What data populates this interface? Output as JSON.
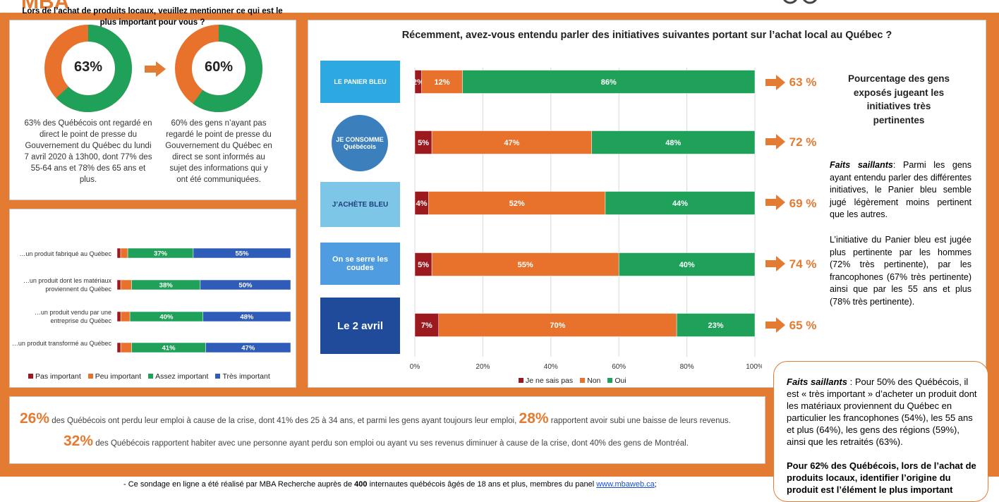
{
  "header": {
    "brand": "MBA"
  },
  "donut1": {
    "value": "63%",
    "pct": 0.63,
    "text": "63% des Québécois ont regardé en direct le point de presse du Gouvernement du Québec du lundi 7 avril 2020 à 13h00, dont 77% des 55-64 ans et 78% des 65 ans et plus."
  },
  "donut2": {
    "value": "60%",
    "pct": 0.6,
    "text": "60% des gens n’ayant pas regardé le point de presse du Gouvernement du Québec en direct se sont informés au sujet des informations qui y ont été communiquées."
  },
  "local": {
    "title": "Lors de l’achat de produits locaux, veuillez mentionner ce qui est le plus important pour vous ?",
    "legend": [
      "Pas important",
      "Peu important",
      "Assez important",
      "Très important"
    ]
  },
  "main": {
    "title": "Récemment, avez-vous entendu parler des initiatives suivantes portant sur l’achat local au Québec ?",
    "legend": [
      "Je ne sais pas",
      "Non",
      "Oui"
    ],
    "ticks": [
      "0%",
      "20%",
      "40%",
      "60%",
      "80%",
      "100%"
    ],
    "logos": [
      "LE PANIER BLEU",
      "JE CONSOMME Québécois",
      "J’ACHÈTE BLEU",
      "On se serre les coudes",
      "Le 2 avril"
    ],
    "pertinence": [
      "63 %",
      "72 %",
      "69 %",
      "74 %",
      "65 %"
    ]
  },
  "side": {
    "heading": "Pourcentage des gens exposés jugeant les initiatives très pertinentes",
    "faits_label": "Faits saillants",
    "faits_text": ": Parmi les gens ayant entendu parler des différentes initiatives, le Panier bleu semble jugé légèrement moins pertinent que les autres.",
    "para2": "L’initiative du Panier bleu est jugée plus pertinente par les hommes (72% très pertinente), par les francophones (67% très pertinente) ainsi que par les 55 ans et plus (78% très pertinente)."
  },
  "callout": {
    "faits_label": "Faits saillants",
    "text": " : Pour 50% des Québécois, il est « très important » d’acheter un produit dont les matériaux proviennent du Québec en particulier les francophones (54%), les 55 ans et plus (64%), les gens des régions (59%), ainsi que les retraités (63%).",
    "bold": "Pour 62% des Québécois, lors de l’achat de produits locaux, identifier l’origine du produit est l’élément le plus important"
  },
  "bottom": {
    "s1_num": "26%",
    "s1_text": " des Québécois ont perdu leur emploi à cause de la crise, dont 41% des 25 à 34 ans, et parmi les gens ayant toujours leur emploi, ",
    "s2_num": "28%",
    "s2_text": " rapportent avoir subi une baisse de leurs revenus.",
    "s3_num": "32%",
    "s3_text": " des Québécois rapportent habiter avec une personne ayant perdu son emploi ou ayant vu ses revenus diminuer à cause de la crise, dont 40% des gens de Montréal."
  },
  "footer": {
    "text1": "-     Ce sondage en ligne a été réalisé par MBA Recherche auprès de ",
    "n": "400",
    "text2": " internautes québécois âgés de 18 ans et plus, membres du panel ",
    "link": "www.mbaweb.ca",
    "end": ";"
  },
  "colors": {
    "dark_red": "#9c1a1f",
    "orange": "#e8722c",
    "green": "#1fa15a",
    "blue": "#2f5cb8",
    "brand": "#e37b33"
  },
  "chart_data": [
    {
      "type": "bar",
      "title": "Récemment, avez-vous entendu parler des initiatives suivantes portant sur l’achat local au Québec ?",
      "orientation": "horizontal-stacked",
      "categories": [
        "LE PANIER BLEU",
        "JE CONSOMME Québécois",
        "J’ACHÈTE BLEU",
        "On se serre les coudes",
        "Le 2 avril"
      ],
      "series": [
        {
          "name": "Je ne sais pas",
          "values": [
            2,
            5,
            4,
            5,
            7
          ],
          "labels": [
            "2%",
            "5%",
            "4%",
            "5%",
            "7%"
          ]
        },
        {
          "name": "Non",
          "values": [
            12,
            47,
            52,
            55,
            70
          ],
          "labels": [
            "12%",
            "47%",
            "52%",
            "55%",
            "70%"
          ]
        },
        {
          "name": "Oui",
          "values": [
            86,
            48,
            44,
            40,
            23
          ],
          "labels": [
            "86%",
            "48%",
            "44%",
            "40%",
            "23%"
          ]
        }
      ],
      "xlim": [
        0,
        100
      ],
      "legend": "bottom"
    },
    {
      "type": "bar",
      "title": "Lors de l’achat de produits locaux, veuillez mentionner ce qui est le plus important pour vous ?",
      "orientation": "horizontal-stacked",
      "categories": [
        "…un produit fabriqué au Québec",
        "…un produit dont les matériaux proviennent du Québec",
        "…un produit vendu par une entreprise du Québec",
        "…un produit transformé au Québec"
      ],
      "series": [
        {
          "name": "Pas important",
          "values": [
            2,
            2,
            2,
            2
          ]
        },
        {
          "name": "Peu important",
          "values": [
            4,
            6,
            5,
            6
          ]
        },
        {
          "name": "Assez important",
          "values": [
            37,
            38,
            40,
            41
          ],
          "labels": [
            "37%",
            "38%",
            "40%",
            "41%"
          ]
        },
        {
          "name": "Très important",
          "values": [
            55,
            50,
            48,
            47
          ],
          "labels": [
            "55%",
            "50%",
            "48%",
            "47%"
          ]
        }
      ],
      "legend": "bottom"
    }
  ]
}
